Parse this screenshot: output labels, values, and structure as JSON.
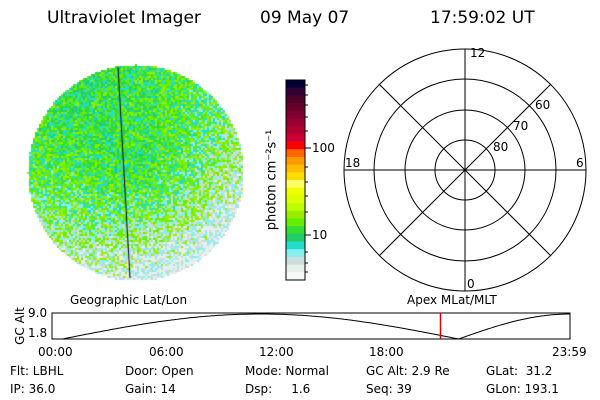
{
  "header": {
    "title": "Ultraviolet Imager",
    "date": "09 May 07",
    "time": "17:59:02 UT"
  },
  "colorbar": {
    "label": "photon cm⁻²s⁻¹",
    "ticks": [
      "100",
      "10"
    ],
    "colors": [
      "#000033",
      "#330033",
      "#4d0026",
      "#66002a",
      "#800030",
      "#990033",
      "#b3002d",
      "#cc0033",
      "#ff0000",
      "#ff6600",
      "#ff9900",
      "#ffbb00",
      "#ffdd00",
      "#ffff66",
      "#eeff00",
      "#ddff00",
      "#bbff00",
      "#99ee00",
      "#66ee00",
      "#33dd33",
      "#22cc66",
      "#22ddcc",
      "#88eeee",
      "#ccdddd",
      "#e6f0ea",
      "#f5faf8"
    ]
  },
  "polar": {
    "labels": {
      "top": "12",
      "left": "18",
      "right": "6",
      "bottom": "0"
    },
    "rings": [
      "80",
      "70",
      "60"
    ]
  },
  "timeline": {
    "left_title": "Geographic Lat/Lon",
    "right_title": "Apex MLat/MLT",
    "ylabel": "GC Alt",
    "ymax": "9.0",
    "ymin": "1.8",
    "xticks": [
      "00:00",
      "06:00",
      "12:00",
      "18:00",
      "23:59"
    ],
    "current_fraction": 0.75,
    "marker_color": "#dd0000"
  },
  "info": {
    "flt": "Flt: LBHL",
    "ip": "IP: 36.0",
    "door": "Door: Open",
    "gain": "Gain: 14",
    "mode": "Mode: Normal",
    "dsp": "Dsp:     1.6",
    "gcalt": "GC Alt: 2.9 Re",
    "seq": "Seq: 39",
    "glat": "GLat:  31.2",
    "glon": "GLon: 193.1"
  }
}
